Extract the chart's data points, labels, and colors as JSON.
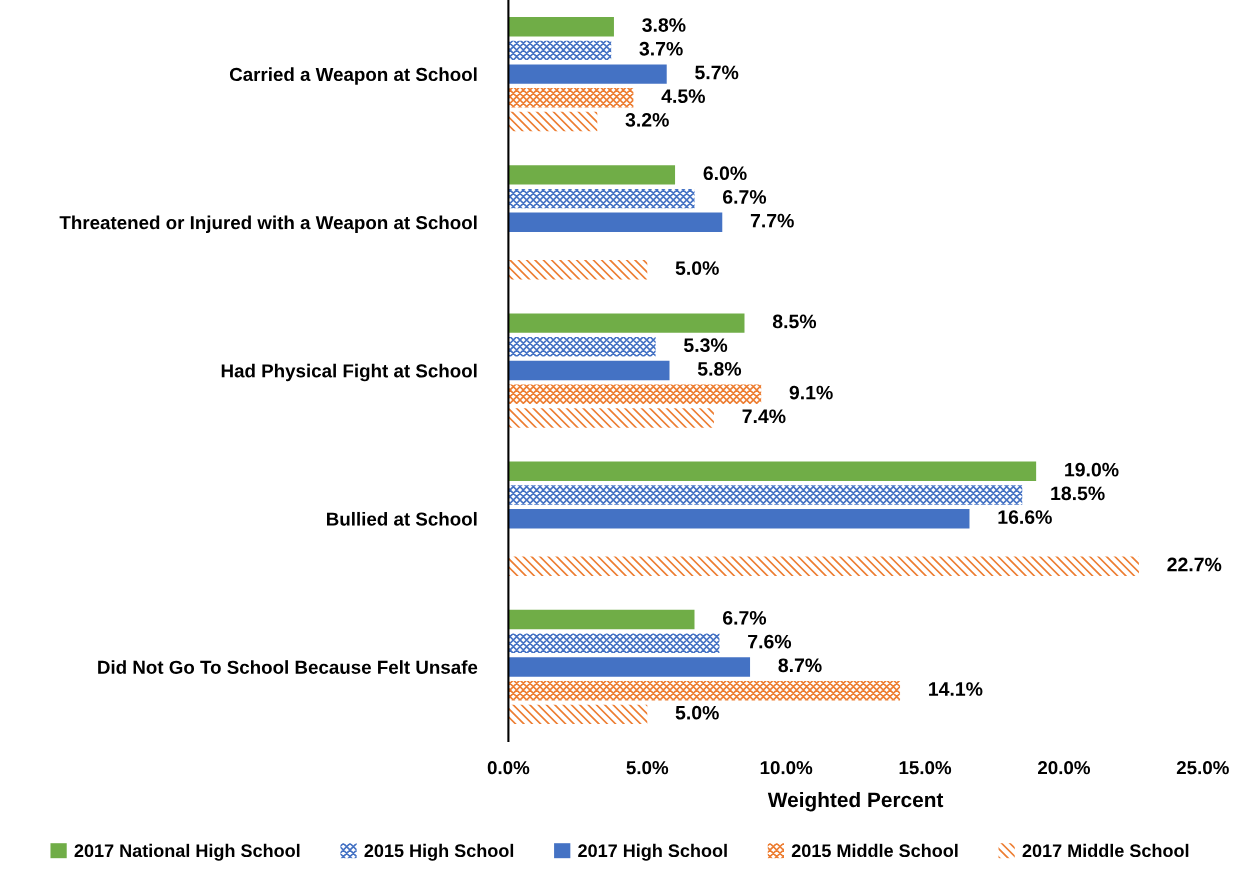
{
  "chart_data": {
    "type": "bar",
    "orientation": "horizontal",
    "xlabel": "Weighted Percent",
    "categories": [
      "Carried a Weapon at School",
      "Threatened or Injured with a Weapon at School",
      "Had Physical Fight at School",
      "Bullied at School",
      "Did Not Go To School Because Felt Unsafe"
    ],
    "series": [
      {
        "name": "2017 National High School",
        "color": "#70ad47",
        "values": [
          3.8,
          6.0,
          8.5,
          19.0,
          6.7
        ],
        "value_labels": [
          "3.8%",
          "6.0%",
          "8.5%",
          "19.0%",
          "6.7%"
        ]
      },
      {
        "name": "2015 High School",
        "color": "#4472c4",
        "values": [
          3.7,
          6.7,
          5.3,
          18.5,
          7.6
        ],
        "value_labels": [
          "3.7%",
          "6.7%",
          "5.3%",
          "18.5%",
          "7.6%"
        ]
      },
      {
        "name": "2017 High School",
        "color": "#4472c4",
        "values": [
          5.7,
          7.7,
          5.8,
          16.6,
          8.7
        ],
        "value_labels": [
          "5.7%",
          "7.7%",
          "5.8%",
          "16.6%",
          "8.7%"
        ]
      },
      {
        "name": "2015 Middle School",
        "color": "#ed7d31",
        "values": [
          4.5,
          null,
          9.1,
          null,
          14.1
        ],
        "value_labels": [
          "4.5%",
          null,
          "9.1%",
          null,
          "14.1%"
        ]
      },
      {
        "name": "2017 Middle School",
        "color": "#ed7d31",
        "values": [
          3.2,
          5.0,
          7.4,
          22.7,
          5.0
        ],
        "value_labels": [
          "3.2%",
          "5.0%",
          "7.4%",
          "22.7%",
          "5.0%"
        ]
      }
    ],
    "xlim": [
      0,
      25
    ],
    "xticks": [
      {
        "value": 0,
        "label": "0.0%"
      },
      {
        "value": 5,
        "label": "5.0%"
      },
      {
        "value": 10,
        "label": "10.0%"
      },
      {
        "value": 15,
        "label": "15.0%"
      },
      {
        "value": 20,
        "label": "20.0%"
      },
      {
        "value": 25,
        "label": "25.0%"
      }
    ],
    "grid": false,
    "legend": "bottom"
  }
}
